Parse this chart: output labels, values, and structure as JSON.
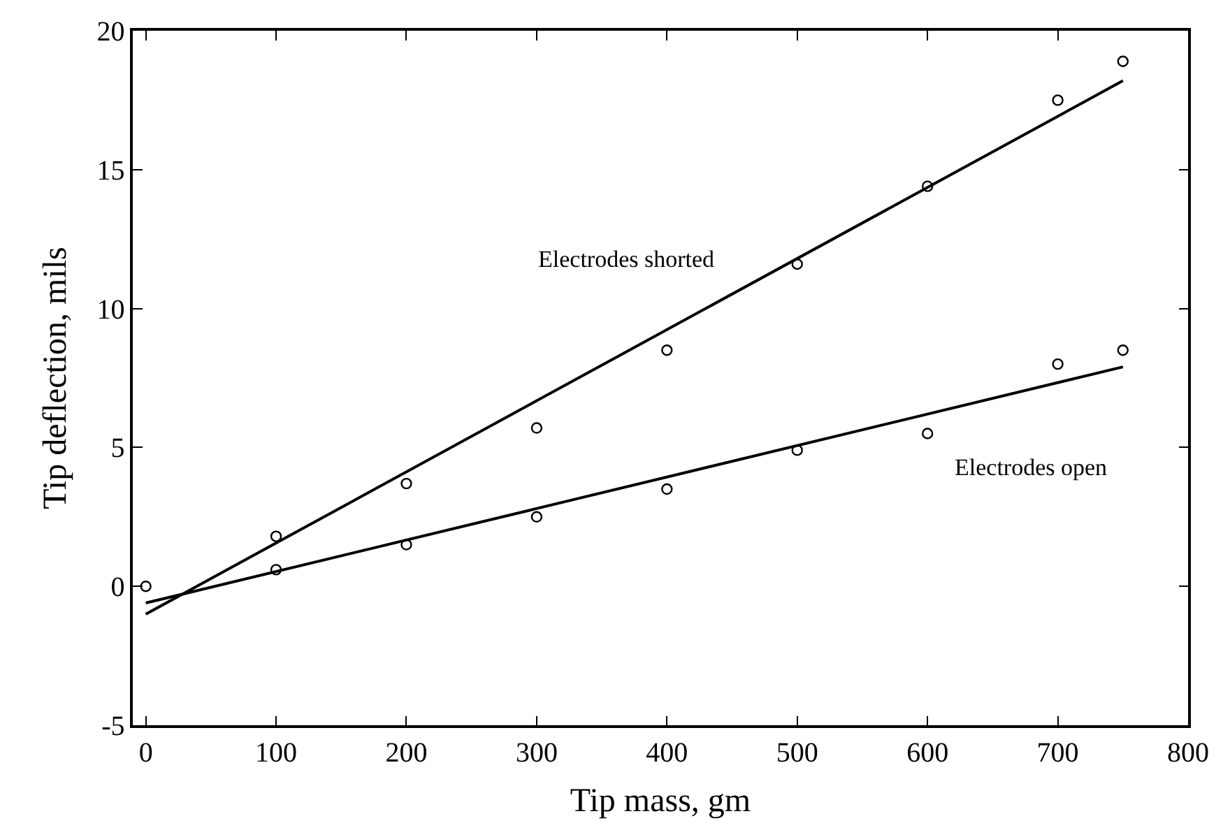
{
  "chart_data": {
    "type": "scatter",
    "xlabel": "Tip mass, gm",
    "ylabel": "Tip deflection, mils",
    "xlim": [
      -10,
      800
    ],
    "ylim": [
      -5,
      20
    ],
    "xticks": [
      0,
      100,
      200,
      300,
      400,
      500,
      600,
      700,
      800
    ],
    "yticks": [
      -5,
      0,
      5,
      10,
      15,
      20
    ],
    "grid": false,
    "legend": false,
    "series": [
      {
        "marker": "circle",
        "color": "#000000",
        "x": [
          0,
          100,
          200,
          300,
          400,
          500,
          600,
          700,
          750
        ],
        "values": [
          0,
          1.8,
          3.7,
          5.7,
          8.5,
          11.6,
          14.4,
          17.5,
          18.9
        ]
      },
      {
        "marker": "circle",
        "color": "#000000",
        "x": [
          100,
          200,
          300,
          400,
          500,
          600,
          700,
          750
        ],
        "values": [
          0.6,
          1.5,
          2.5,
          3.5,
          4.9,
          5.5,
          8.0,
          8.5
        ]
      },
      {
        "type": "line",
        "name": "Electrodes shorted",
        "marker": "none",
        "line_style": "solid",
        "color": "#000000",
        "x": [
          0,
          750
        ],
        "values": [
          -1.0,
          18.2
        ]
      },
      {
        "type": "line",
        "name": "Electrodes open",
        "marker": "none",
        "line_style": "solid",
        "color": "#000000",
        "x": [
          0,
          750
        ],
        "values": [
          -0.6,
          7.9
        ]
      }
    ]
  }
}
